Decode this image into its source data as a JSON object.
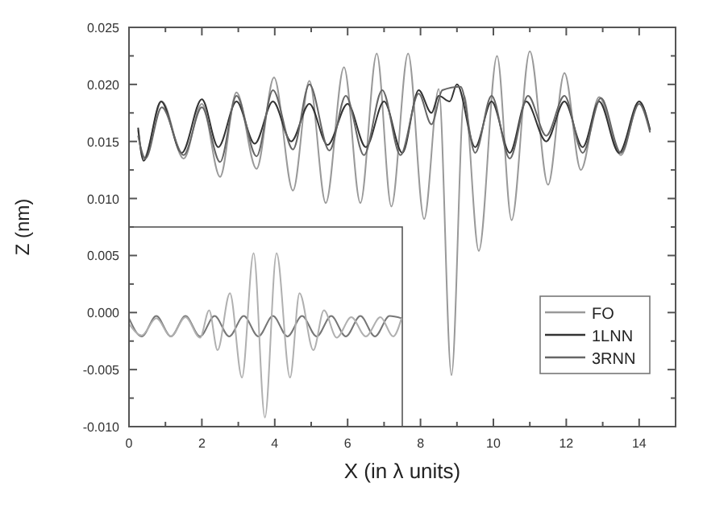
{
  "chart_data": {
    "type": "line",
    "xlabel": "X (in λ units)",
    "ylabel": "Z (nm)",
    "xlim": [
      0,
      15
    ],
    "ylim": [
      -0.01,
      0.025
    ],
    "xticks": [
      0,
      {
        "value": 1,
        "label": null
      },
      2,
      {
        "value": 3,
        "label": null
      },
      4,
      {
        "value": 5,
        "label": null
      },
      6,
      {
        "value": 7,
        "label": null
      },
      8,
      {
        "value": 9,
        "label": null
      },
      10,
      {
        "value": 11,
        "label": null
      },
      12,
      {
        "value": 13,
        "label": null
      },
      14
    ],
    "yticks": [
      {
        "value": -0.01,
        "label": "-0.010"
      },
      {
        "value": -0.0075,
        "label": null
      },
      {
        "value": -0.005,
        "label": "-0.005"
      },
      {
        "value": -0.0025,
        "label": null
      },
      {
        "value": 0,
        "label": "0.000"
      },
      {
        "value": 0.0025,
        "label": null
      },
      {
        "value": 0.005,
        "label": "0.005"
      },
      {
        "value": 0.0075,
        "label": null
      },
      {
        "value": 0.01,
        "label": "0.010"
      },
      {
        "value": 0.0125,
        "label": null
      },
      {
        "value": 0.015,
        "label": "0.015"
      },
      {
        "value": 0.0175,
        "label": null
      },
      {
        "value": 0.02,
        "label": "0.020"
      },
      {
        "value": 0.0225,
        "label": null
      },
      {
        "value": 0.025,
        "label": "0.025"
      }
    ],
    "grid": false,
    "legend": "bottom right",
    "marker": "none",
    "line_style": "solid",
    "series": [
      {
        "name": "FO",
        "color": "#999999",
        "x": [
          0.25,
          0.4,
          0.9,
          1.5,
          2.0,
          2.5,
          2.95,
          3.5,
          3.98,
          4.5,
          4.95,
          5.4,
          5.9,
          6.35,
          6.8,
          7.2,
          7.66,
          8.1,
          8.5,
          8.85,
          9.2,
          9.6,
          10.1,
          10.5,
          11.0,
          11.5,
          11.95,
          12.4,
          12.9,
          13.5,
          14.0,
          14.3
        ],
        "values": [
          0.016,
          0.0135,
          0.0185,
          0.0135,
          0.0183,
          0.0119,
          0.0193,
          0.0126,
          0.0206,
          0.0107,
          0.0203,
          0.0096,
          0.0215,
          0.0096,
          0.0227,
          0.0093,
          0.0227,
          0.0082,
          0.0196,
          -0.0055,
          0.019,
          0.0054,
          0.0225,
          0.0081,
          0.0229,
          0.0112,
          0.021,
          0.0125,
          0.0189,
          0.0138,
          0.0185,
          0.016
        ]
      },
      {
        "name": "1LNN",
        "color": "#333333",
        "x": [
          0.25,
          0.4,
          0.88,
          1.45,
          2.0,
          2.45,
          2.95,
          3.45,
          3.95,
          4.45,
          4.95,
          5.45,
          6.0,
          6.5,
          7.0,
          7.5,
          7.95,
          8.3,
          8.5,
          8.8,
          9.0,
          9.5,
          9.95,
          10.45,
          10.9,
          11.45,
          11.95,
          12.45,
          12.9,
          13.45,
          14.0,
          14.3
        ],
        "values": [
          0.0162,
          0.0133,
          0.0185,
          0.014,
          0.0187,
          0.0145,
          0.0185,
          0.0148,
          0.0185,
          0.015,
          0.0183,
          0.0147,
          0.0183,
          0.0145,
          0.0185,
          0.014,
          0.0195,
          0.0175,
          0.019,
          0.0185,
          0.02,
          0.0145,
          0.0185,
          0.014,
          0.0185,
          0.015,
          0.0185,
          0.0145,
          0.0185,
          0.014,
          0.0185,
          0.016
        ]
      },
      {
        "name": "3RNN",
        "color": "#666666",
        "x": [
          0.25,
          0.45,
          0.9,
          1.5,
          2.0,
          2.5,
          2.95,
          3.5,
          3.95,
          4.5,
          4.95,
          5.5,
          5.95,
          6.45,
          6.95,
          7.45,
          7.95,
          8.3,
          8.6,
          9.1,
          9.5,
          9.95,
          10.45,
          10.95,
          11.45,
          11.95,
          12.45,
          12.95,
          13.5,
          14.0,
          14.3
        ],
        "values": [
          0.0155,
          0.0135,
          0.018,
          0.0138,
          0.018,
          0.0132,
          0.019,
          0.0137,
          0.0195,
          0.0143,
          0.02,
          0.0142,
          0.019,
          0.0138,
          0.0195,
          0.0138,
          0.0192,
          0.0165,
          0.0195,
          0.0198,
          0.014,
          0.019,
          0.0135,
          0.019,
          0.0155,
          0.019,
          0.014,
          0.0188,
          0.014,
          0.0183,
          0.0158
        ]
      },
      {
        "color": "#777777",
        "x": [
          0,
          0.35,
          0.75,
          1.15,
          1.55,
          1.95,
          2.35,
          2.75,
          3.15,
          3.55,
          3.95,
          4.35,
          4.75,
          5.15,
          5.55,
          5.95,
          6.35,
          6.75,
          7.15,
          7.48
        ],
        "values": [
          -0.0005,
          -0.0021,
          -0.0003,
          -0.0021,
          -0.0003,
          -0.0021,
          -0.0003,
          -0.0021,
          -0.0003,
          -0.0021,
          -0.0003,
          -0.0021,
          -0.0003,
          -0.0021,
          -0.0003,
          -0.0021,
          -0.0003,
          -0.0021,
          -0.0003,
          -0.0005
        ]
      },
      {
        "color": "#b0b0b0",
        "x": [
          0,
          0.35,
          0.75,
          1.15,
          1.55,
          1.95,
          2.2,
          2.43,
          2.77,
          3.1,
          3.42,
          3.73,
          4.05,
          4.42,
          4.68,
          5.06,
          5.35,
          5.7,
          6.1,
          6.5,
          6.9,
          7.25,
          7.48
        ],
        "values": [
          -0.001,
          -0.002,
          -0.0005,
          -0.0021,
          -0.0004,
          -0.0022,
          0.0002,
          -0.0033,
          0.0017,
          -0.0057,
          0.0052,
          -0.0092,
          0.0052,
          -0.0057,
          0.0017,
          -0.0033,
          0.0002,
          -0.0022,
          -0.0004,
          -0.0021,
          -0.0004,
          -0.0021,
          -0.0005
        ]
      }
    ]
  }
}
